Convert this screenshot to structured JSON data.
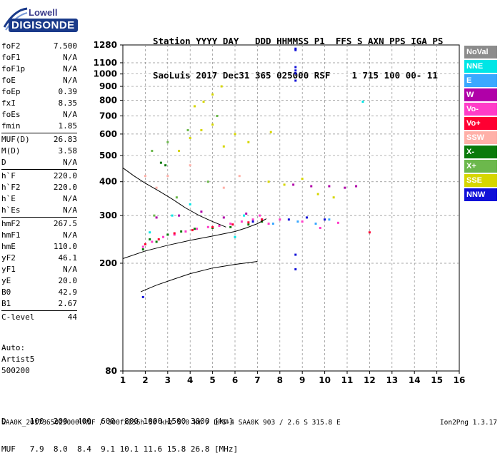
{
  "logo": {
    "brand_top": "Lowell",
    "brand_bottom": "DIGISONDE"
  },
  "header": {
    "line1": "Station YYYY DAY   DDD HHMMSS P1  FFS S AXN PPS IGA PS",
    "line2": "SaoLuis 2017 Dec31 365 025000 RSF    1 715 100 00- 11"
  },
  "params": [
    {
      "name": "foF2",
      "value": "7.500"
    },
    {
      "name": "foF1",
      "value": "N/A"
    },
    {
      "name": "foF1p",
      "value": "N/A"
    },
    {
      "name": "foE",
      "value": "N/A"
    },
    {
      "name": "foEp",
      "value": "0.39"
    },
    {
      "name": "fxI",
      "value": "8.35"
    },
    {
      "name": "foEs",
      "value": "N/A"
    },
    {
      "name": "fmin",
      "value": "1.85"
    },
    {
      "sep": true
    },
    {
      "name": "MUF(D)",
      "value": "26.83"
    },
    {
      "name": "M(D)",
      "value": "3.58"
    },
    {
      "name": "D",
      "value": "N/A"
    },
    {
      "sep": true
    },
    {
      "name": "h`F",
      "value": "220.0"
    },
    {
      "name": "h`F2",
      "value": "220.0"
    },
    {
      "name": "h`E",
      "value": "N/A"
    },
    {
      "name": "h`Es",
      "value": "N/A"
    },
    {
      "sep": true
    },
    {
      "name": "hmF2",
      "value": "267.5"
    },
    {
      "name": "hmF1",
      "value": "N/A"
    },
    {
      "name": "hmE",
      "value": "110.0"
    },
    {
      "name": "yF2",
      "value": "46.1"
    },
    {
      "name": "yF1",
      "value": "N/A"
    },
    {
      "name": "yE",
      "value": "20.0"
    },
    {
      "name": "B0",
      "value": "42.9"
    },
    {
      "name": "B1",
      "value": "2.67"
    },
    {
      "sep": true
    },
    {
      "name": "C-level",
      "value": "44"
    }
  ],
  "auto": {
    "line1": "Auto:",
    "line2": "Artist5",
    "line3": "500200"
  },
  "muf_table": {
    "d_line": "D     100  200  400  600  800 1000 1500 3000 [km]",
    "muf_line": "MUF   7.9  8.0  8.4  9.1 10.1 11.6 15.8 26.8 [MHz]"
  },
  "footer": {
    "left": "SAA0K_2017365025000.RSF / 300fx256h 50 kHz 5.0 km / DPS-4 SAA0K 903 / 2.6 S 315.8 E",
    "right": "Ion2Png 1.3.17"
  },
  "legend": [
    {
      "label": "NoVal",
      "color": "#8c8c8c"
    },
    {
      "label": "NNE",
      "color": "#00e6e6"
    },
    {
      "label": "E",
      "color": "#3aa8ff"
    },
    {
      "label": "W",
      "color": "#b000a8"
    },
    {
      "label": "Vo-",
      "color": "#ff3cc8"
    },
    {
      "label": "Vo+",
      "color": "#ff0032"
    },
    {
      "label": "SSW",
      "color": "#ffb0a8"
    },
    {
      "label": "X-",
      "color": "#0a7a0a"
    },
    {
      "label": "X+",
      "color": "#6cb84c"
    },
    {
      "label": "SSE",
      "color": "#d6d600"
    },
    {
      "label": "NNW",
      "color": "#1010d8"
    }
  ],
  "chart_data": {
    "type": "scatter",
    "title": "",
    "xlabel": "",
    "ylabel": "",
    "xlim": [
      1,
      16
    ],
    "ylim": [
      80,
      1280
    ],
    "y_scale": "log",
    "x_ticks": [
      "1",
      "2",
      "3",
      "4",
      "5",
      "6",
      "7",
      "8",
      "9",
      "10",
      "11",
      "12",
      "13",
      "14",
      "15",
      "16"
    ],
    "y_ticks": [
      "80",
      "200",
      "300",
      "400",
      "500",
      "600",
      "700",
      "800",
      "900",
      "1000",
      "1100",
      "1280"
    ],
    "grid": "dashed",
    "series": [
      {
        "color": "#ff3cc8",
        "points": [
          [
            1.9,
            230
          ],
          [
            2.3,
            240
          ],
          [
            2.8,
            250
          ],
          [
            3.3,
            255
          ],
          [
            3.8,
            262
          ],
          [
            4.3,
            268
          ],
          [
            4.8,
            272
          ],
          [
            5.3,
            275
          ],
          [
            5.8,
            280
          ],
          [
            6.3,
            285
          ],
          [
            6.8,
            290
          ],
          [
            7.1,
            300
          ],
          [
            7.5,
            280
          ],
          [
            8.0,
            290
          ],
          [
            9.0,
            285
          ],
          [
            9.8,
            270
          ],
          [
            10.6,
            282
          ]
        ]
      },
      {
        "color": "#b000a8",
        "points": [
          [
            2.5,
            295
          ],
          [
            3.5,
            300
          ],
          [
            4.5,
            310
          ],
          [
            5.5,
            295
          ],
          [
            6.5,
            305
          ],
          [
            7.2,
            290
          ],
          [
            8.6,
            390
          ],
          [
            9.4,
            385
          ],
          [
            10.2,
            385
          ],
          [
            10.9,
            380
          ],
          [
            11.4,
            385
          ]
        ]
      },
      {
        "color": "#d6d600",
        "points": [
          [
            3.5,
            520
          ],
          [
            4.0,
            580
          ],
          [
            4.5,
            620
          ],
          [
            5.0,
            650
          ],
          [
            5.5,
            540
          ],
          [
            6.0,
            600
          ],
          [
            6.6,
            560
          ],
          [
            7.6,
            610
          ],
          [
            4.2,
            760
          ],
          [
            4.6,
            790
          ],
          [
            5.0,
            840
          ],
          [
            5.4,
            900
          ],
          [
            7.5,
            400
          ],
          [
            8.2,
            390
          ],
          [
            9.0,
            410
          ],
          [
            9.7,
            360
          ],
          [
            10.4,
            350
          ]
        ]
      },
      {
        "color": "#0a7a0a",
        "points": [
          [
            1.9,
            225
          ],
          [
            2.2,
            245
          ],
          [
            2.5,
            240
          ],
          [
            3.0,
            255
          ],
          [
            3.6,
            262
          ],
          [
            4.2,
            268
          ],
          [
            5.0,
            270
          ],
          [
            5.8,
            272
          ],
          [
            6.6,
            278
          ],
          [
            7.2,
            285
          ],
          [
            2.7,
            470
          ],
          [
            2.9,
            460
          ]
        ]
      },
      {
        "color": "#1010d8",
        "points": [
          [
            8.7,
            1240
          ],
          [
            8.7,
            1225
          ],
          [
            8.7,
            1060
          ],
          [
            8.7,
            1030
          ],
          [
            8.7,
            1005
          ],
          [
            8.7,
            945
          ],
          [
            8.7,
            215
          ],
          [
            8.7,
            190
          ],
          [
            8.4,
            290
          ],
          [
            9.2,
            295
          ],
          [
            10.0,
            290
          ],
          [
            6.8,
            285
          ],
          [
            1.9,
            150
          ]
        ]
      },
      {
        "color": "#ff0032",
        "points": [
          [
            2.0,
            235
          ],
          [
            2.6,
            245
          ],
          [
            3.3,
            258
          ],
          [
            4.1,
            265
          ],
          [
            5.0,
            272
          ],
          [
            5.9,
            278
          ],
          [
            6.6,
            283
          ],
          [
            7.2,
            290
          ],
          [
            12.0,
            260
          ]
        ]
      },
      {
        "color": "#00e6e6",
        "points": [
          [
            2.2,
            260
          ],
          [
            3.2,
            300
          ],
          [
            4.0,
            330
          ],
          [
            6.0,
            250
          ],
          [
            11.7,
            790
          ],
          [
            6.4,
            300
          ]
        ]
      },
      {
        "color": "#3aa8ff",
        "points": [
          [
            7.7,
            280
          ],
          [
            8.8,
            285
          ],
          [
            9.6,
            280
          ],
          [
            10.2,
            290
          ]
        ]
      },
      {
        "color": "#6cb84c",
        "points": [
          [
            2.3,
            520
          ],
          [
            3.0,
            560
          ],
          [
            3.9,
            620
          ],
          [
            5.2,
            700
          ],
          [
            2.4,
            300
          ],
          [
            3.4,
            350
          ],
          [
            4.8,
            400
          ]
        ]
      },
      {
        "color": "#ffb0a8",
        "points": [
          [
            2.0,
            420
          ],
          [
            2.5,
            380
          ],
          [
            3.0,
            420
          ],
          [
            4.0,
            460
          ],
          [
            5.5,
            380
          ],
          [
            6.2,
            420
          ]
        ]
      }
    ],
    "traces": [
      {
        "name": "",
        "points": [
          [
            1.0,
            208
          ],
          [
            2.0,
            222
          ],
          [
            3.0,
            233
          ],
          [
            4.0,
            243
          ],
          [
            5.0,
            252
          ],
          [
            6.0,
            262
          ],
          [
            6.5,
            270
          ],
          [
            7.0,
            280
          ],
          [
            7.4,
            292
          ]
        ]
      },
      {
        "name": "",
        "points": [
          [
            1.0,
            450
          ],
          [
            1.5,
            420
          ],
          [
            2.0,
            395
          ],
          [
            2.6,
            370
          ],
          [
            3.2,
            345
          ],
          [
            3.8,
            320
          ],
          [
            4.4,
            300
          ],
          [
            5.0,
            285
          ],
          [
            5.6,
            272
          ]
        ]
      },
      {
        "name": "",
        "points": [
          [
            1.8,
            157
          ],
          [
            2.5,
            166
          ],
          [
            3.3,
            175
          ],
          [
            4.0,
            183
          ],
          [
            5.0,
            192
          ],
          [
            6.0,
            198
          ],
          [
            7.0,
            203
          ]
        ]
      }
    ]
  }
}
